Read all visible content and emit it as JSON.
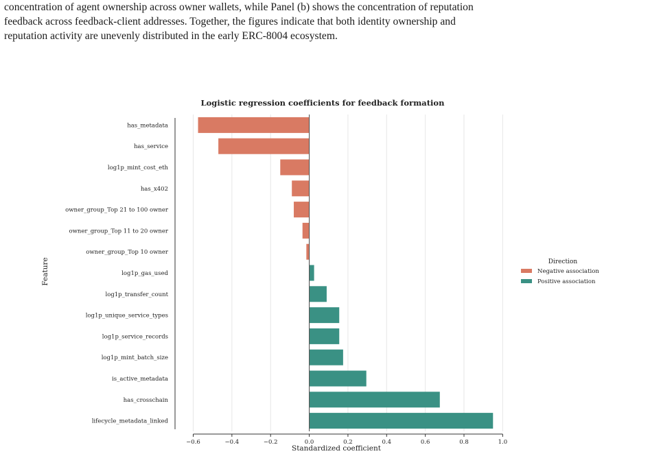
{
  "caption": {
    "lines": [
      "concentration of agent ownership across owner wallets, while Panel (b) shows the concentration of reputation",
      "feedback across feedback-client addresses. Together, the figures indicate that both identity ownership and",
      "reputation activity are unevenly distributed in the early ERC-8004 ecosystem."
    ]
  },
  "chart_data": {
    "type": "bar",
    "orientation": "horizontal",
    "title": "Logistic regression coefficients for feedback formation",
    "xlabel": "Standardized coefficient",
    "ylabel": "Feature",
    "xlim": [
      -0.6,
      1.0
    ],
    "xticks": [
      "−0.6",
      "−0.4",
      "−0.2",
      "0.0",
      "0.2",
      "0.4",
      "0.6",
      "0.8",
      "1.0"
    ],
    "xtick_values": [
      -0.6,
      -0.4,
      -0.2,
      0.0,
      0.2,
      0.4,
      0.6,
      0.8,
      1.0
    ],
    "grid": "vertical",
    "legend_placement": "right",
    "legend": {
      "title": "Direction",
      "entries": [
        {
          "label": "Negative association",
          "color": "#d97a63"
        },
        {
          "label": "Positive association",
          "color": "#3a9184"
        }
      ]
    },
    "categories": [
      "has_metadata",
      "has_service",
      "log1p_mint_cost_eth",
      "has_x402",
      "owner_group_Top 21 to 100 owner",
      "owner_group_Top 11 to 20 owner",
      "owner_group_Top 10 owner",
      "log1p_gas_used",
      "log1p_transfer_count",
      "log1p_unique_service_types",
      "log1p_service_records",
      "log1p_mint_batch_size",
      "is_active_metadata",
      "has_crosschain",
      "lifecycle_metadata_linked"
    ],
    "values": [
      -0.575,
      -0.47,
      -0.15,
      -0.09,
      -0.08,
      -0.035,
      -0.015,
      0.025,
      0.09,
      0.155,
      0.155,
      0.175,
      0.295,
      0.675,
      0.95
    ]
  }
}
